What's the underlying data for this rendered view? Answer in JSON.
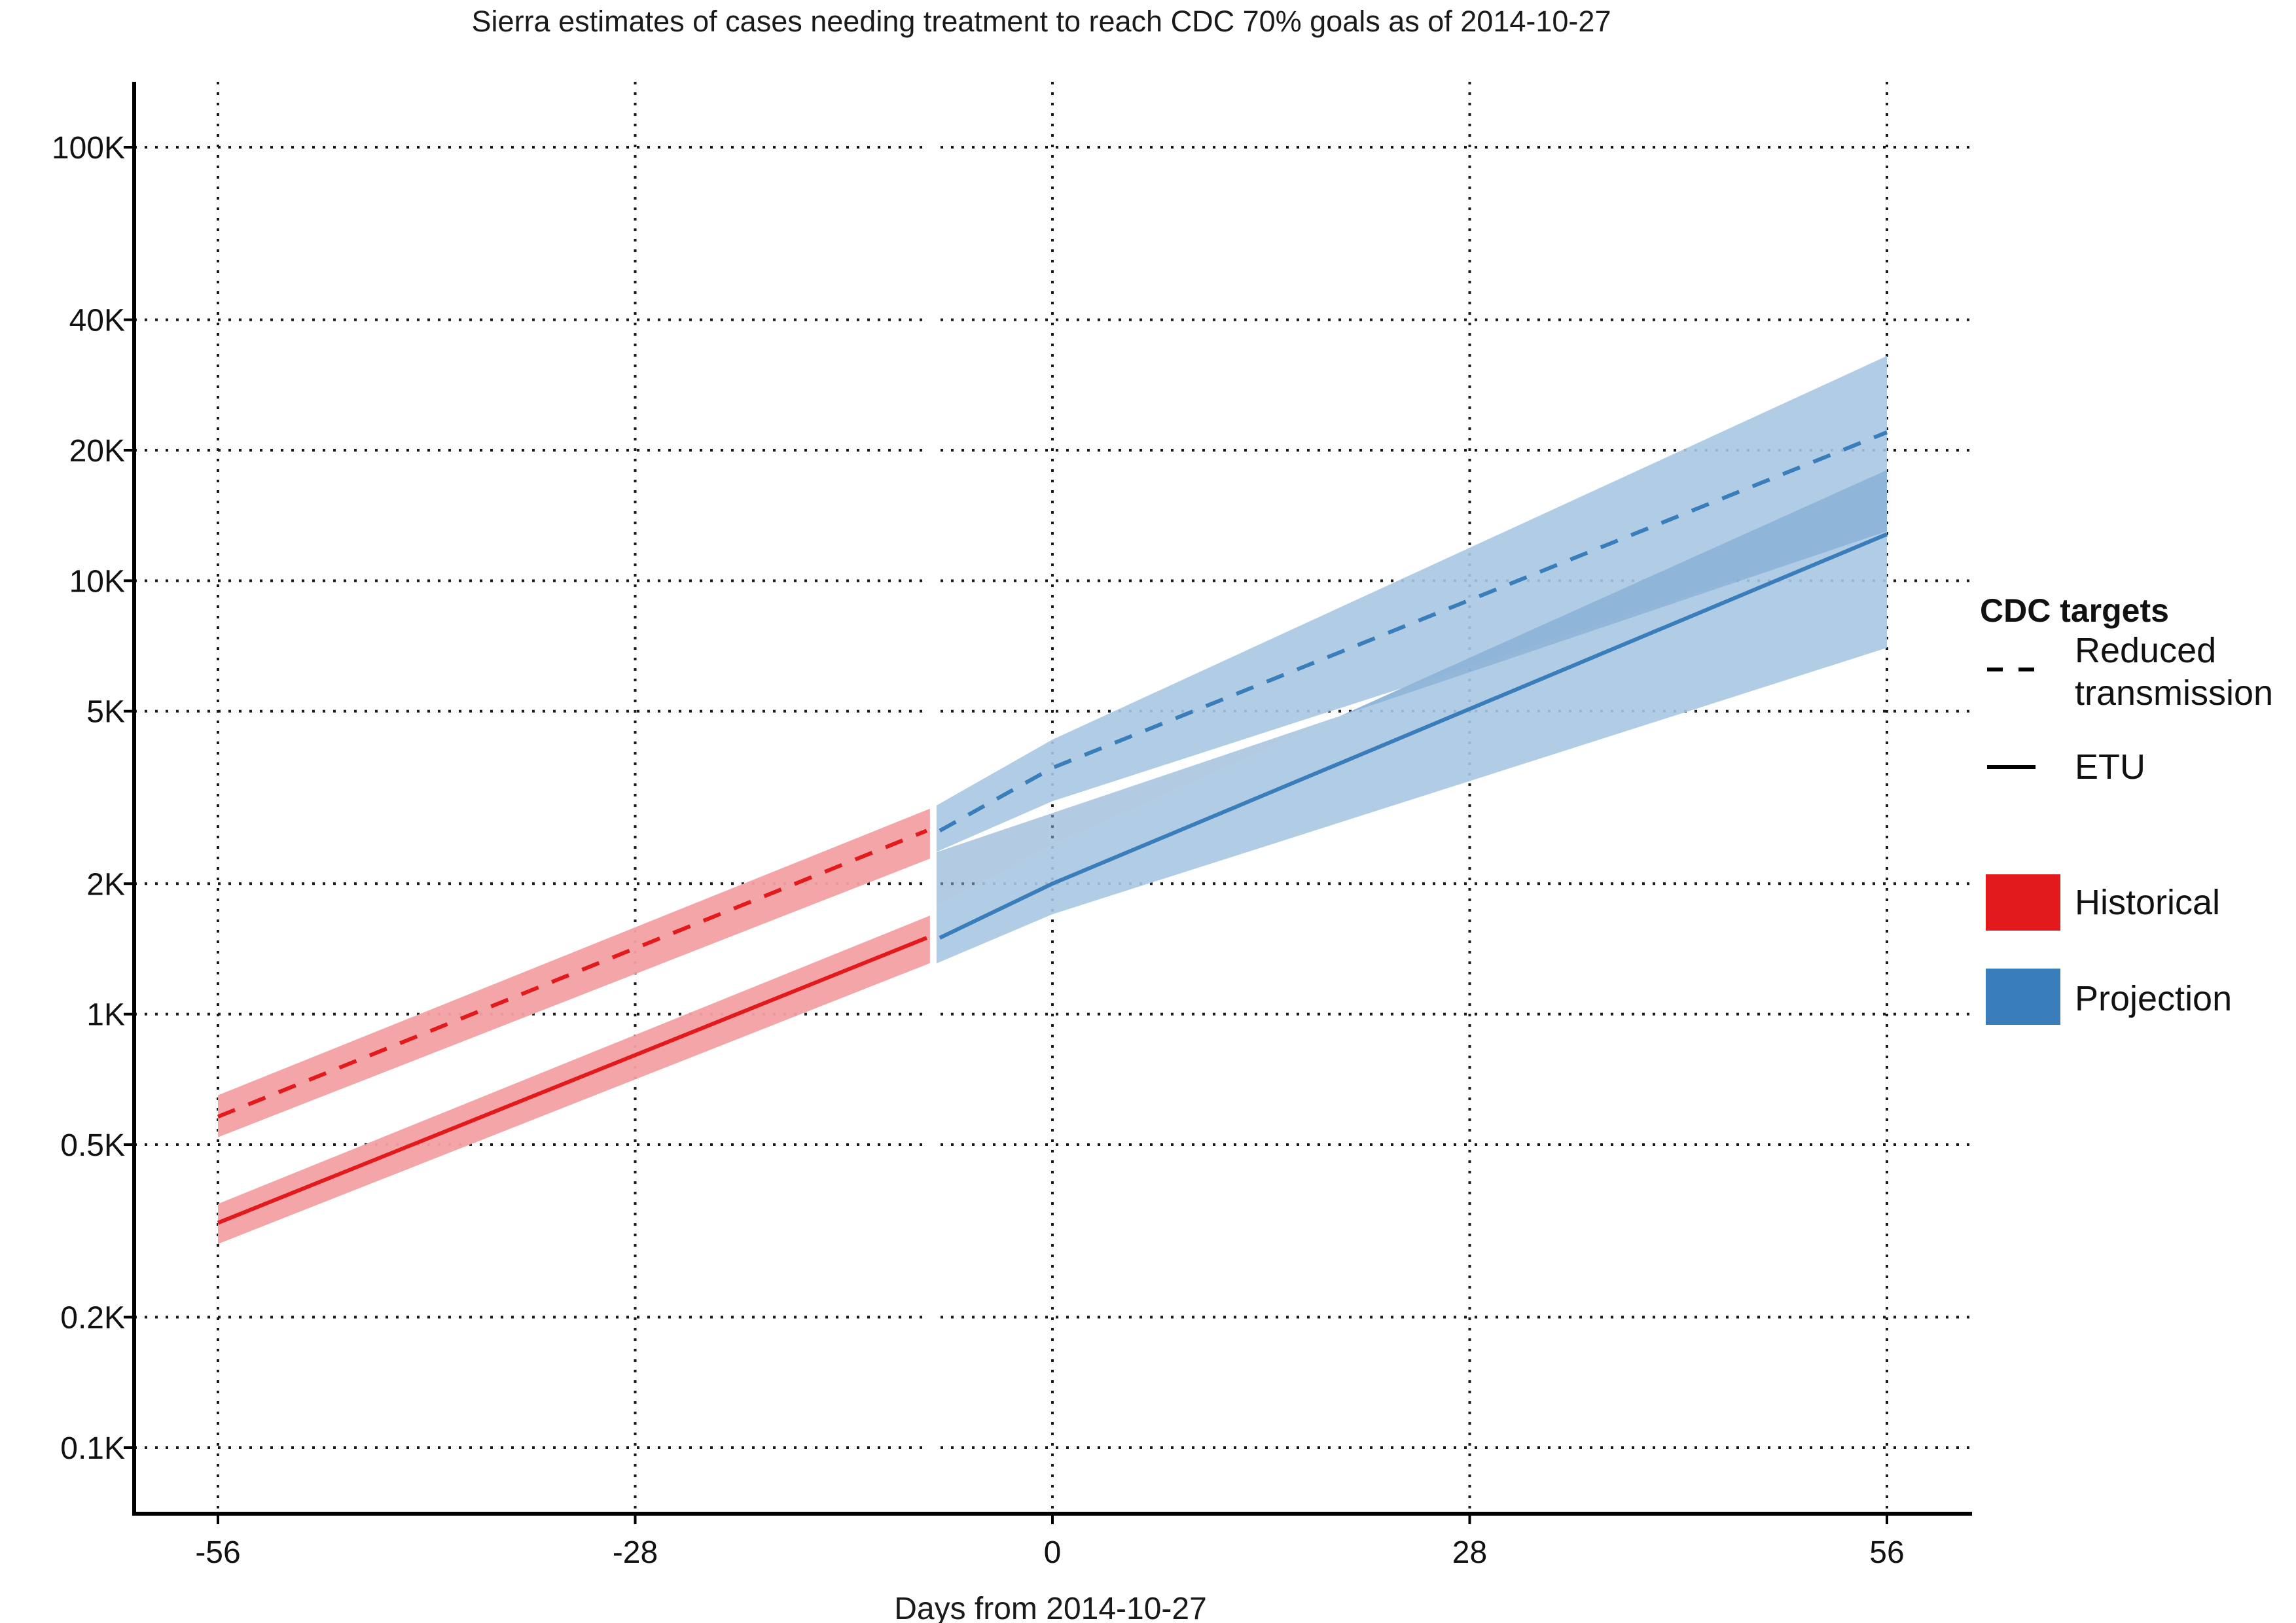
{
  "chart_data": {
    "type": "line",
    "title": "Sierra estimates of cases needing treatment to reach CDC 70% goals as of 2014-10-27",
    "xlabel": "Days from 2014-10-27",
    "ylabel": "",
    "x_scale": "linear",
    "y_scale": "log",
    "xlim": [
      -62,
      62
    ],
    "ylim": [
      80,
      130000
    ],
    "x_ticks": [
      -56,
      -28,
      0,
      28,
      56
    ],
    "x_tick_labels": [
      "-56",
      "-28",
      "0",
      "28",
      "56"
    ],
    "y_ticks": [
      100,
      200,
      500,
      1000,
      2000,
      5000,
      10000,
      20000,
      40000,
      100000
    ],
    "y_tick_labels": [
      "0.1K",
      "0.2K",
      "0.5K",
      "1K",
      "2K",
      "5K",
      "10K",
      "20K",
      "40K",
      "100K"
    ],
    "grid": true,
    "legend": {
      "title": "CDC targets",
      "placement": "right",
      "linetype_entries": [
        {
          "label_lines": [
            "Reduced",
            "transmission"
          ],
          "style": "dashed"
        },
        {
          "label_lines": [
            "ETU"
          ],
          "style": "solid"
        }
      ],
      "fill_entries": [
        {
          "label": "Historical",
          "color": "#e31a1c"
        },
        {
          "label": "Projection",
          "color": "#3a7dbb"
        }
      ]
    },
    "colors": {
      "historical_line": "#e31a1c",
      "historical_band": "#f2a0a3",
      "projection_line": "#3a7dbb",
      "projection_band": "#a9c8e3",
      "projection_overlap": "#7ea9d1"
    },
    "series": [
      {
        "period": "Historical",
        "target": "Reduced transmission",
        "style": "dashed",
        "x": [
          -56,
          -8
        ],
        "y": [
          580,
          2650
        ],
        "lower": [
          520,
          2300
        ],
        "upper": [
          650,
          3000
        ]
      },
      {
        "period": "Historical",
        "target": "ETU",
        "style": "solid",
        "x": [
          -56,
          -8
        ],
        "y": [
          330,
          1500
        ],
        "lower": [
          295,
          1320
        ],
        "upper": [
          365,
          1700
        ]
      },
      {
        "period": "Projection",
        "target": "Reduced transmission",
        "style": "dashed",
        "x": [
          -8,
          0,
          56
        ],
        "y": [
          2650,
          3700,
          22000
        ],
        "lower": [
          2350,
          3100,
          13000
        ],
        "upper": [
          3000,
          4300,
          33000
        ]
      },
      {
        "period": "Projection",
        "target": "ETU",
        "style": "solid",
        "x": [
          -8,
          0,
          56
        ],
        "y": [
          1500,
          2000,
          12800
        ],
        "lower": [
          1300,
          1700,
          7000
        ],
        "upper": [
          1750,
          2450,
          18000
        ]
      }
    ]
  }
}
